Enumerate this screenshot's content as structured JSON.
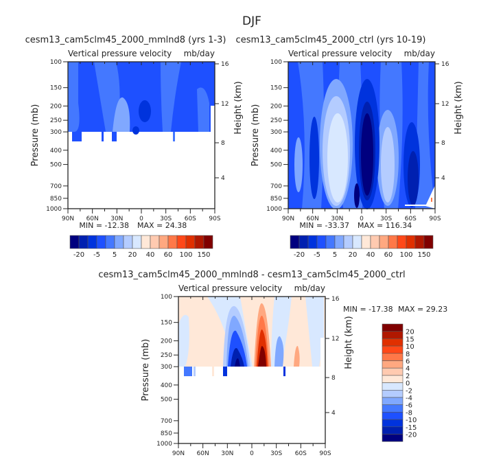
{
  "chart_data": {
    "title": "DJF",
    "type": "heatmap",
    "panels": [
      {
        "id": "p1",
        "title": "cesm13_cam5clm45_2000_mmlnd8 (yrs 1-3)",
        "subtitle_left": "Vertical pressure velocity",
        "subtitle_right": "mb/day",
        "ylabel": "Pressure (mb)",
        "ylabel_right": "Height (km)",
        "min_text": "MIN = -12.38",
        "max_text": "MAX =   24.38",
        "colorbar_labels": [
          "-20",
          "-5",
          "5",
          "20",
          "40",
          "60",
          "100",
          "150"
        ]
      },
      {
        "id": "p2",
        "title": "cesm13_cam5clm45_2000_ctrl (yrs 10-19)",
        "subtitle_left": "Vertical pressure velocity",
        "subtitle_right": "mb/day",
        "ylabel": "Pressure (mb)",
        "ylabel_right": "Height (km)",
        "min_text": "MIN = -33.37",
        "max_text": "MAX = 116.34",
        "colorbar_labels": [
          "-20",
          "-5",
          "5",
          "20",
          "40",
          "60",
          "100",
          "150"
        ]
      },
      {
        "id": "p3",
        "title": "cesm13_cam5clm45_2000_mmlnd8 - cesm13_cam5clm45_2000_ctrl",
        "subtitle_left": "Vertical pressure velocity",
        "subtitle_right": "mb/day",
        "ylabel": "Pressure (mb)",
        "ylabel_right": "Height (km)",
        "min_text": "MIN = -17.38",
        "max_text": "MAX =   29.23",
        "colorbar_labels": [
          "20",
          "15",
          "10",
          "8",
          "6",
          "4",
          "2",
          "0",
          "-2",
          "-4",
          "-6",
          "-8",
          "-10",
          "-15",
          "-20"
        ]
      }
    ],
    "pressure_ticks": [
      "100",
      "150",
      "200",
      "250",
      "300",
      "400",
      "500",
      "700",
      "850",
      "1000"
    ],
    "pressure_values": [
      100,
      150,
      200,
      250,
      300,
      400,
      500,
      700,
      850,
      1000
    ],
    "ylim": [
      1000,
      100
    ],
    "lat_ticks": [
      "90N",
      "60N",
      "30N",
      "0",
      "30S",
      "60S",
      "90S"
    ],
    "lat_values": [
      90,
      60,
      30,
      0,
      -30,
      -60,
      -90
    ],
    "xlim": [
      90,
      -90
    ],
    "height_ticks": [
      "16",
      "12",
      "8",
      "4"
    ],
    "height_values": [
      16,
      12,
      8,
      4
    ],
    "colorbar_colors": [
      "#00007f",
      "#0020b0",
      "#0033dd",
      "#1e50ff",
      "#4478ff",
      "#80a8ff",
      "#b4ccff",
      "#d8e8ff",
      "#ffe8d8",
      "#ffcab0",
      "#ffa880",
      "#ff7848",
      "#ff4818",
      "#e03000",
      "#b01800",
      "#800000"
    ]
  }
}
